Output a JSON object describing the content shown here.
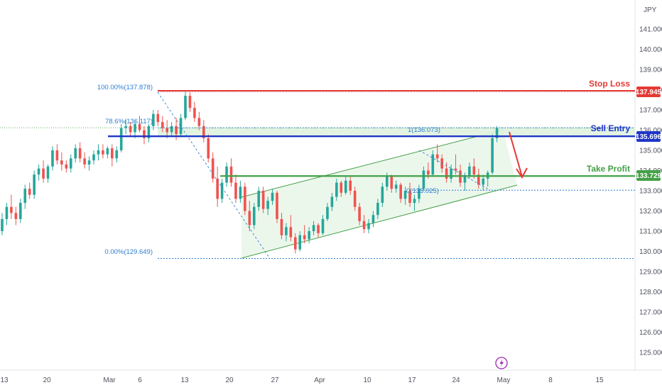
{
  "currency": "JPY",
  "colors": {
    "up": "#26a69a",
    "down": "#ef5350",
    "stop": "#e53935",
    "entry": "#1e36c8",
    "target": "#43a047",
    "fib": "#2f7fd0",
    "channel_fill": "#e6f4e6",
    "zone_fill": "#dff2df"
  },
  "annotations": {
    "stop_loss": "Stop Loss",
    "sell_entry": "Sell Entry",
    "take_profit": "Take Profit",
    "fib_100": "100.00%(137.878)",
    "fib_786": "78.6%(136.117)",
    "fib_0": "0.00%(129.649)",
    "fib_ext_1": "1(136.073)",
    "fib_ext_0": "0(133.025)"
  },
  "chart_data": {
    "type": "candlestick",
    "y_axis": {
      "min": 124.2,
      "max": 141.9,
      "ticks": [
        "125.000",
        "126.000",
        "127.000",
        "128.000",
        "129.000",
        "130.000",
        "131.000",
        "132.000",
        "133.000",
        "134.000",
        "135.000",
        "136.000",
        "137.000",
        "138.000",
        "139.000",
        "140.000",
        "141.000"
      ]
    },
    "x_axis": {
      "labels": [
        "13",
        "20",
        "Mar",
        "6",
        "13",
        "20",
        "27",
        "Apr",
        "10",
        "17",
        "24",
        "May",
        "8",
        "15"
      ]
    },
    "levels": [
      {
        "name": "Stop Loss",
        "price": 137.945,
        "tag": "137.945"
      },
      {
        "name": "Sell Entry",
        "price": 135.696,
        "tag": "135.696"
      },
      {
        "name": "Take Profit",
        "price": 133.729,
        "tag": "133.729"
      }
    ],
    "fibonacci": [
      {
        "label": "100.00%(137.878)",
        "price": 137.878
      },
      {
        "label": "78.6%(136.117)",
        "price": 136.117
      },
      {
        "label": "0.00%(129.649)",
        "price": 129.649
      }
    ],
    "fib_extension": [
      {
        "label": "1(136.073)",
        "price": 136.073
      },
      {
        "label": "0(133.025)",
        "price": 133.025
      }
    ],
    "candles_ohlc": [
      [
        131.0,
        131.9,
        130.8,
        131.6
      ],
      [
        131.6,
        132.4,
        131.3,
        132.2
      ],
      [
        132.2,
        132.8,
        131.6,
        131.9
      ],
      [
        131.9,
        132.2,
        131.3,
        131.6
      ],
      [
        131.6,
        132.6,
        131.4,
        132.4
      ],
      [
        132.4,
        133.3,
        132.1,
        133.1
      ],
      [
        133.1,
        133.4,
        132.6,
        132.8
      ],
      [
        132.8,
        134.0,
        132.6,
        133.8
      ],
      [
        133.8,
        134.3,
        133.5,
        134.1
      ],
      [
        134.1,
        134.5,
        133.4,
        133.6
      ],
      [
        133.6,
        134.3,
        133.4,
        134.2
      ],
      [
        134.2,
        135.2,
        134.0,
        135.0
      ],
      [
        135.0,
        135.3,
        134.3,
        134.5
      ],
      [
        134.5,
        134.9,
        134.0,
        134.3
      ],
      [
        134.3,
        134.5,
        133.9,
        134.1
      ],
      [
        134.1,
        134.8,
        133.9,
        134.6
      ],
      [
        134.6,
        135.3,
        134.4,
        135.1
      ],
      [
        135.1,
        135.4,
        134.4,
        134.6
      ],
      [
        134.6,
        134.9,
        134.1,
        134.3
      ],
      [
        134.3,
        134.7,
        134.0,
        134.5
      ],
      [
        134.5,
        135.0,
        134.3,
        134.8
      ],
      [
        134.8,
        135.3,
        134.5,
        135.0
      ],
      [
        135.0,
        135.3,
        134.6,
        134.8
      ],
      [
        134.8,
        135.2,
        134.6,
        135.1
      ],
      [
        135.1,
        135.3,
        134.2,
        134.6
      ],
      [
        134.6,
        135.2,
        134.4,
        135.0
      ],
      [
        135.0,
        136.3,
        134.9,
        136.1
      ],
      [
        136.1,
        136.5,
        135.8,
        136.2
      ],
      [
        136.2,
        136.4,
        135.7,
        135.9
      ],
      [
        135.9,
        136.5,
        135.6,
        136.3
      ],
      [
        136.3,
        136.7,
        135.9,
        136.0
      ],
      [
        136.0,
        136.2,
        135.3,
        135.6
      ],
      [
        135.6,
        136.3,
        135.4,
        136.2
      ],
      [
        136.2,
        137.0,
        136.0,
        136.8
      ],
      [
        136.8,
        137.0,
        136.2,
        136.4
      ],
      [
        136.4,
        136.7,
        135.9,
        136.1
      ],
      [
        136.1,
        136.5,
        135.6,
        135.9
      ],
      [
        135.9,
        136.4,
        135.7,
        136.2
      ],
      [
        136.2,
        136.6,
        135.5,
        135.8
      ],
      [
        135.8,
        136.8,
        135.7,
        136.6
      ],
      [
        136.6,
        137.9,
        136.5,
        137.7
      ],
      [
        137.7,
        137.9,
        136.9,
        137.1
      ],
      [
        137.1,
        137.4,
        136.4,
        136.6
      ],
      [
        136.6,
        136.9,
        136.0,
        136.2
      ],
      [
        136.2,
        136.5,
        135.4,
        135.6
      ],
      [
        135.6,
        135.8,
        134.4,
        134.6
      ],
      [
        134.6,
        134.9,
        133.4,
        133.6
      ],
      [
        133.6,
        134.2,
        132.2,
        132.6
      ],
      [
        132.6,
        133.6,
        132.4,
        133.4
      ],
      [
        133.4,
        134.4,
        133.2,
        134.2
      ],
      [
        134.2,
        134.6,
        133.2,
        133.4
      ],
      [
        133.4,
        133.8,
        132.4,
        132.6
      ],
      [
        132.6,
        133.5,
        132.4,
        133.2
      ],
      [
        133.2,
        133.4,
        131.8,
        132.0
      ],
      [
        132.0,
        132.5,
        131.0,
        131.3
      ],
      [
        131.3,
        132.4,
        131.1,
        132.2
      ],
      [
        132.2,
        133.2,
        132.0,
        133.0
      ],
      [
        133.0,
        133.2,
        131.9,
        132.1
      ],
      [
        132.1,
        132.7,
        131.8,
        132.5
      ],
      [
        132.5,
        133.1,
        132.3,
        132.9
      ],
      [
        132.9,
        133.0,
        131.4,
        131.6
      ],
      [
        131.6,
        131.9,
        130.6,
        130.8
      ],
      [
        130.8,
        131.4,
        130.5,
        131.2
      ],
      [
        131.2,
        131.8,
        130.5,
        130.7
      ],
      [
        130.7,
        130.9,
        129.9,
        130.1
      ],
      [
        130.1,
        131.0,
        130.0,
        130.8
      ],
      [
        130.8,
        131.3,
        130.4,
        130.6
      ],
      [
        130.6,
        131.2,
        130.4,
        131.0
      ],
      [
        131.0,
        131.5,
        130.8,
        131.3
      ],
      [
        131.3,
        131.4,
        130.7,
        130.9
      ],
      [
        130.9,
        131.8,
        130.8,
        131.6
      ],
      [
        131.6,
        132.4,
        131.5,
        132.2
      ],
      [
        132.2,
        132.9,
        132.0,
        132.7
      ],
      [
        132.7,
        133.6,
        132.5,
        133.4
      ],
      [
        133.4,
        133.5,
        132.7,
        132.9
      ],
      [
        132.9,
        133.7,
        132.8,
        133.5
      ],
      [
        133.5,
        133.7,
        132.8,
        133.0
      ],
      [
        133.0,
        133.2,
        132.0,
        132.2
      ],
      [
        132.2,
        132.4,
        131.3,
        131.5
      ],
      [
        131.5,
        131.8,
        130.9,
        131.1
      ],
      [
        131.1,
        131.6,
        130.9,
        131.4
      ],
      [
        131.4,
        132.0,
        131.2,
        131.8
      ],
      [
        131.8,
        132.6,
        131.6,
        132.4
      ],
      [
        132.4,
        133.4,
        132.2,
        133.2
      ],
      [
        133.2,
        133.9,
        133.0,
        133.7
      ],
      [
        133.7,
        133.8,
        132.9,
        133.1
      ],
      [
        133.1,
        133.5,
        132.9,
        133.3
      ],
      [
        133.3,
        133.4,
        132.4,
        132.6
      ],
      [
        132.6,
        133.2,
        132.3,
        133.0
      ],
      [
        133.0,
        133.4,
        132.2,
        132.4
      ],
      [
        132.4,
        132.8,
        132.0,
        132.6
      ],
      [
        132.6,
        133.3,
        132.4,
        133.1
      ],
      [
        133.1,
        134.2,
        133.0,
        134.0
      ],
      [
        134.0,
        134.4,
        133.6,
        133.8
      ],
      [
        133.8,
        135.0,
        133.7,
        134.8
      ],
      [
        134.8,
        135.3,
        134.4,
        134.6
      ],
      [
        134.6,
        134.8,
        133.9,
        134.1
      ],
      [
        134.1,
        134.4,
        133.4,
        133.6
      ],
      [
        133.6,
        134.3,
        133.4,
        134.1
      ],
      [
        134.1,
        134.8,
        133.8,
        134.0
      ],
      [
        134.0,
        134.3,
        133.2,
        133.4
      ],
      [
        133.4,
        133.9,
        133.0,
        133.7
      ],
      [
        133.7,
        134.4,
        133.6,
        134.2
      ],
      [
        134.2,
        134.6,
        133.6,
        133.8
      ],
      [
        133.8,
        134.1,
        133.1,
        133.3
      ],
      [
        133.3,
        133.8,
        133.0,
        133.6
      ],
      [
        133.6,
        134.0,
        133.2,
        133.9
      ],
      [
        133.9,
        135.8,
        133.8,
        135.6
      ],
      [
        135.6,
        136.2,
        135.4,
        136.1
      ]
    ]
  }
}
